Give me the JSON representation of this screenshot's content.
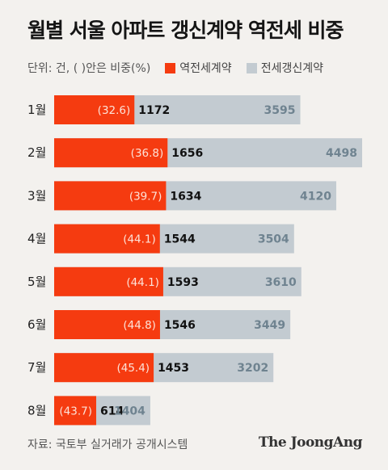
{
  "title": "월별 서울 아파트 갱신계약 역전세 비중",
  "legend": {
    "unit": "단위: 건, ( )안은 비중(%)",
    "series_a": "역전세계약",
    "series_b": "전세갱신계약"
  },
  "colors": {
    "reverse": "#f53b10",
    "renewal": "#c3cbd1",
    "renewal_text": "#6f8390",
    "pct_text": "#fde2d8"
  },
  "chart_data": {
    "type": "bar",
    "orientation": "horizontal",
    "categories": [
      "1월",
      "2월",
      "3월",
      "4월",
      "5월",
      "6월",
      "7월",
      "8월"
    ],
    "series": [
      {
        "name": "역전세계약",
        "values": [
          1172,
          1656,
          1634,
          1544,
          1593,
          1546,
          1453,
          614
        ]
      },
      {
        "name": "전세갱신계약",
        "values": [
          3595,
          4498,
          4120,
          3504,
          3610,
          3449,
          3202,
          1404
        ]
      }
    ],
    "percent_labels": [
      "(32.6)",
      "(36.8)",
      "(39.7)",
      "(44.1)",
      "(44.1)",
      "(44.8)",
      "(45.4)",
      "(43.7)"
    ],
    "overlap": true
  },
  "footer": {
    "source": "자료: 국토부 실거래가 공개시스템",
    "brand": "The JoongAng"
  }
}
